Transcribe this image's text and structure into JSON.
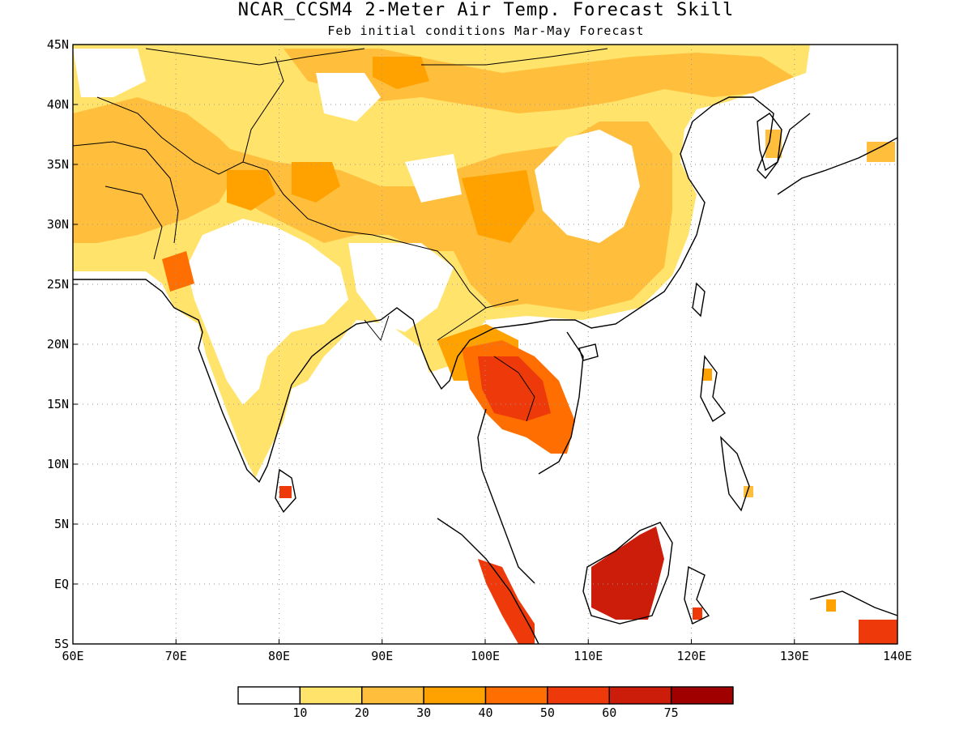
{
  "title": "NCAR_CCSM4 2-Meter Air Temp. Forecast Skill",
  "subtitle": "Feb initial conditions  Mar-May Forecast",
  "map": {
    "lon_range": [
      60,
      140
    ],
    "lat_range": [
      -5,
      45
    ],
    "lon_ticks": [
      "60E",
      "70E",
      "80E",
      "90E",
      "100E",
      "110E",
      "120E",
      "130E",
      "140E"
    ],
    "lat_ticks": [
      "45N",
      "40N",
      "35N",
      "30N",
      "25N",
      "20N",
      "15N",
      "10N",
      "5N",
      "EQ",
      "5S"
    ],
    "grid": "dotted",
    "coastlines": "black"
  },
  "colorbar": {
    "colors": [
      "#ffffff",
      "#ffe36b",
      "#ffbe3b",
      "#ffa200",
      "#ff6e00",
      "#ee3a0a",
      "#cc1c0a",
      "#a00000"
    ],
    "labels": [
      "10",
      "20",
      "30",
      "40",
      "50",
      "60",
      "75"
    ]
  }
}
